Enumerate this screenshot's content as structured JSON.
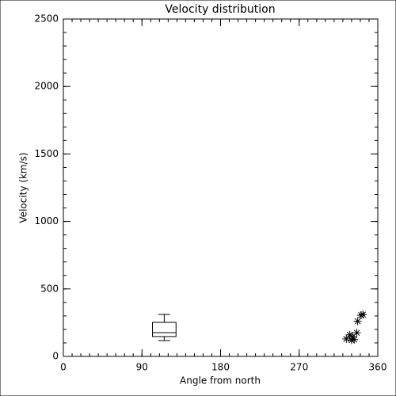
{
  "chart_data": {
    "title": "Velocity distribution",
    "xlabel": "Angle from north",
    "ylabel": "Velocity (km/s)",
    "xlim": [
      0,
      360
    ],
    "xticks": [
      0,
      90,
      180,
      270,
      360
    ],
    "x_minor_step": 10,
    "ylim": [
      0,
      2500
    ],
    "yticks": [
      0,
      500,
      1000,
      1500,
      2000,
      2500
    ],
    "y_minor_step": 100,
    "color": "#000000",
    "layers": [
      {
        "type": "box",
        "x": 115.5,
        "width": 27,
        "min": 117,
        "q1": 147,
        "median": 176,
        "q3": 252,
        "max": 311
      },
      {
        "type": "scatter",
        "marker": "asterisk",
        "x": [
          324,
          328,
          330,
          331,
          333,
          336,
          337,
          341,
          343
        ],
        "y": [
          130,
          160,
          120,
          145,
          125,
          175,
          260,
          305,
          310
        ]
      }
    ]
  }
}
